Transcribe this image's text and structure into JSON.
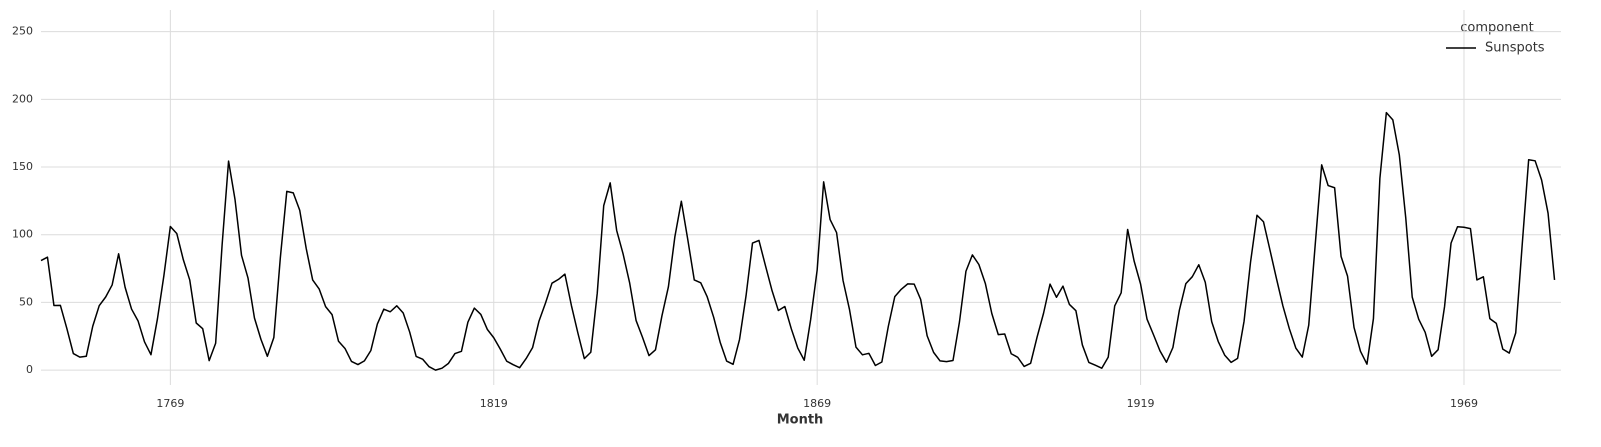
{
  "chart_data": {
    "type": "line",
    "x_label": "Month",
    "legend_title": "component",
    "legend_position": "upper right",
    "grid": true,
    "xlim": [
      1749,
      1984
    ],
    "ylim": [
      -11,
      266
    ],
    "xticks": [
      1769,
      1819,
      1869,
      1919,
      1969
    ],
    "yticks": [
      0,
      50,
      100,
      150,
      200,
      250
    ],
    "x": [
      1749,
      1750,
      1751,
      1752,
      1753,
      1754,
      1755,
      1756,
      1757,
      1758,
      1759,
      1760,
      1761,
      1762,
      1763,
      1764,
      1765,
      1766,
      1767,
      1768,
      1769,
      1770,
      1771,
      1772,
      1773,
      1774,
      1775,
      1776,
      1777,
      1778,
      1779,
      1780,
      1781,
      1782,
      1783,
      1784,
      1785,
      1786,
      1787,
      1788,
      1789,
      1790,
      1791,
      1792,
      1793,
      1794,
      1795,
      1796,
      1797,
      1798,
      1799,
      1800,
      1801,
      1802,
      1803,
      1804,
      1805,
      1806,
      1807,
      1808,
      1809,
      1810,
      1811,
      1812,
      1813,
      1814,
      1815,
      1816,
      1817,
      1818,
      1819,
      1820,
      1821,
      1822,
      1823,
      1824,
      1825,
      1826,
      1827,
      1828,
      1829,
      1830,
      1831,
      1832,
      1833,
      1834,
      1835,
      1836,
      1837,
      1838,
      1839,
      1840,
      1841,
      1842,
      1843,
      1844,
      1845,
      1846,
      1847,
      1848,
      1849,
      1850,
      1851,
      1852,
      1853,
      1854,
      1855,
      1856,
      1857,
      1858,
      1859,
      1860,
      1861,
      1862,
      1863,
      1864,
      1865,
      1866,
      1867,
      1868,
      1869,
      1870,
      1871,
      1872,
      1873,
      1874,
      1875,
      1876,
      1877,
      1878,
      1879,
      1880,
      1881,
      1882,
      1883,
      1884,
      1885,
      1886,
      1887,
      1888,
      1889,
      1890,
      1891,
      1892,
      1893,
      1894,
      1895,
      1896,
      1897,
      1898,
      1899,
      1900,
      1901,
      1902,
      1903,
      1904,
      1905,
      1906,
      1907,
      1908,
      1909,
      1910,
      1911,
      1912,
      1913,
      1914,
      1915,
      1916,
      1917,
      1918,
      1919,
      1920,
      1921,
      1922,
      1923,
      1924,
      1925,
      1926,
      1927,
      1928,
      1929,
      1930,
      1931,
      1932,
      1933,
      1934,
      1935,
      1936,
      1937,
      1938,
      1939,
      1940,
      1941,
      1942,
      1943,
      1944,
      1945,
      1946,
      1947,
      1948,
      1949,
      1950,
      1951,
      1952,
      1953,
      1954,
      1955,
      1956,
      1957,
      1958,
      1959,
      1960,
      1961,
      1962,
      1963,
      1964,
      1965,
      1966,
      1967,
      1968,
      1969,
      1970,
      1971,
      1972,
      1973,
      1974,
      1975,
      1976,
      1977,
      1978,
      1979,
      1980,
      1981,
      1982,
      1983
    ],
    "series": [
      {
        "name": "Sunspots",
        "color": "#000000",
        "values": [
          80.9,
          83.4,
          47.7,
          47.8,
          30.7,
          12.2,
          9.6,
          10.2,
          32.4,
          47.6,
          54.0,
          62.9,
          85.9,
          61.2,
          45.1,
          36.4,
          20.9,
          11.4,
          37.8,
          69.8,
          106.1,
          100.8,
          81.6,
          66.5,
          34.8,
          30.6,
          7.0,
          19.8,
          92.5,
          154.4,
          125.9,
          84.8,
          68.1,
          38.5,
          22.8,
          10.2,
          24.1,
          82.9,
          132.0,
          130.9,
          118.1,
          89.9,
          66.6,
          60.0,
          46.9,
          41.0,
          21.3,
          16.0,
          6.4,
          4.1,
          6.8,
          14.5,
          34.0,
          45.0,
          43.1,
          47.5,
          42.2,
          28.1,
          10.1,
          8.1,
          2.5,
          0.0,
          1.4,
          5.0,
          12.2,
          13.9,
          35.4,
          45.8,
          41.1,
          30.1,
          23.9,
          15.6,
          6.6,
          4.0,
          1.8,
          8.5,
          16.6,
          36.3,
          49.6,
          64.2,
          67.0,
          70.9,
          47.8,
          27.5,
          8.5,
          13.2,
          56.9,
          121.5,
          138.3,
          103.2,
          85.7,
          64.6,
          36.7,
          24.2,
          10.7,
          15.0,
          40.1,
          61.5,
          98.5,
          124.7,
          96.3,
          66.6,
          64.5,
          54.1,
          39.0,
          20.6,
          6.7,
          4.3,
          22.7,
          54.8,
          93.8,
          95.8,
          77.2,
          59.1,
          44.0,
          47.0,
          30.5,
          16.3,
          7.3,
          37.6,
          74.0,
          139.0,
          111.2,
          101.6,
          66.2,
          44.7,
          17.0,
          11.3,
          12.4,
          3.4,
          6.0,
          32.3,
          54.3,
          59.7,
          63.7,
          63.5,
          52.2,
          25.4,
          13.1,
          6.8,
          6.3,
          7.1,
          35.6,
          73.0,
          85.1,
          78.0,
          64.0,
          41.8,
          26.2,
          26.7,
          12.1,
          9.5,
          2.7,
          5.0,
          24.4,
          42.0,
          63.5,
          53.8,
          62.0,
          48.5,
          43.9,
          18.6,
          5.7,
          3.6,
          1.4,
          9.6,
          47.4,
          57.1,
          103.9,
          80.6,
          63.6,
          37.6,
          26.1,
          14.2,
          5.8,
          16.7,
          44.3,
          63.9,
          69.0,
          77.8,
          64.9,
          35.7,
          21.2,
          11.1,
          5.7,
          8.7,
          36.1,
          79.7,
          114.4,
          109.6,
          88.8,
          67.8,
          47.5,
          30.6,
          16.3,
          9.6,
          33.2,
          92.6,
          151.6,
          136.3,
          134.7,
          83.9,
          69.4,
          31.5,
          13.9,
          4.4,
          38.0,
          141.7,
          190.2,
          184.8,
          159.0,
          112.3,
          53.9,
          37.6,
          27.9,
          10.2,
          15.1,
          47.0,
          93.8,
          105.9,
          105.5,
          104.5,
          66.6,
          68.9,
          38.0,
          34.5,
          15.5,
          12.6,
          27.5,
          92.5,
          155.4,
          154.6,
          140.4,
          115.9,
          66.6
        ]
      }
    ]
  }
}
